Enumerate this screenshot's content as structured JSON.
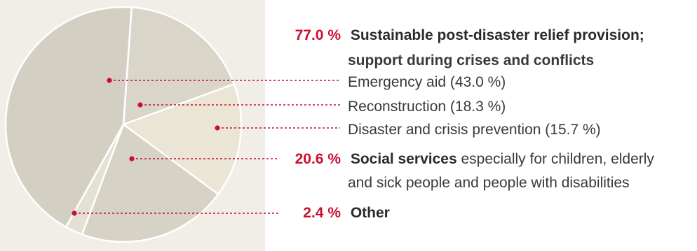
{
  "chart_data": {
    "type": "pie",
    "slices": [
      {
        "label": "Emergency aid (43.0 %)",
        "value": 43.0,
        "color": "#d3cfc3"
      },
      {
        "label": "Reconstruction (18.3 %)",
        "value": 18.3,
        "color": "#d9d5c9"
      },
      {
        "label": "Disaster and crisis prevention (15.7 %)",
        "value": 15.7,
        "color": "#ebe5d5"
      },
      {
        "label": "Social services especially for children, elderly and sick people and people with disabilities",
        "value": 20.6,
        "color": "#d6d2c6"
      },
      {
        "label": "Other",
        "value": 2.4,
        "color": "#e4e0d4"
      }
    ]
  },
  "legend": {
    "group1": {
      "pct": "77.0 %",
      "title_line1": "Sustainable post-disaster relief provision;",
      "title_line2": "support during crises and conflicts",
      "items": [
        "Emergency aid (43.0 %)",
        "Reconstruction (18.3 %)",
        "Disaster and crisis prevention (15.7 %)"
      ]
    },
    "group2": {
      "pct": "20.6 %",
      "title": "Social services",
      "desc_line1": "especially for children, elderly",
      "desc_line2": "and sick people and people with disabilities"
    },
    "group3": {
      "pct": "2.4 %",
      "title": "Other"
    }
  },
  "colors": {
    "accent": "#c8102e",
    "panel": "#f1eee8"
  }
}
